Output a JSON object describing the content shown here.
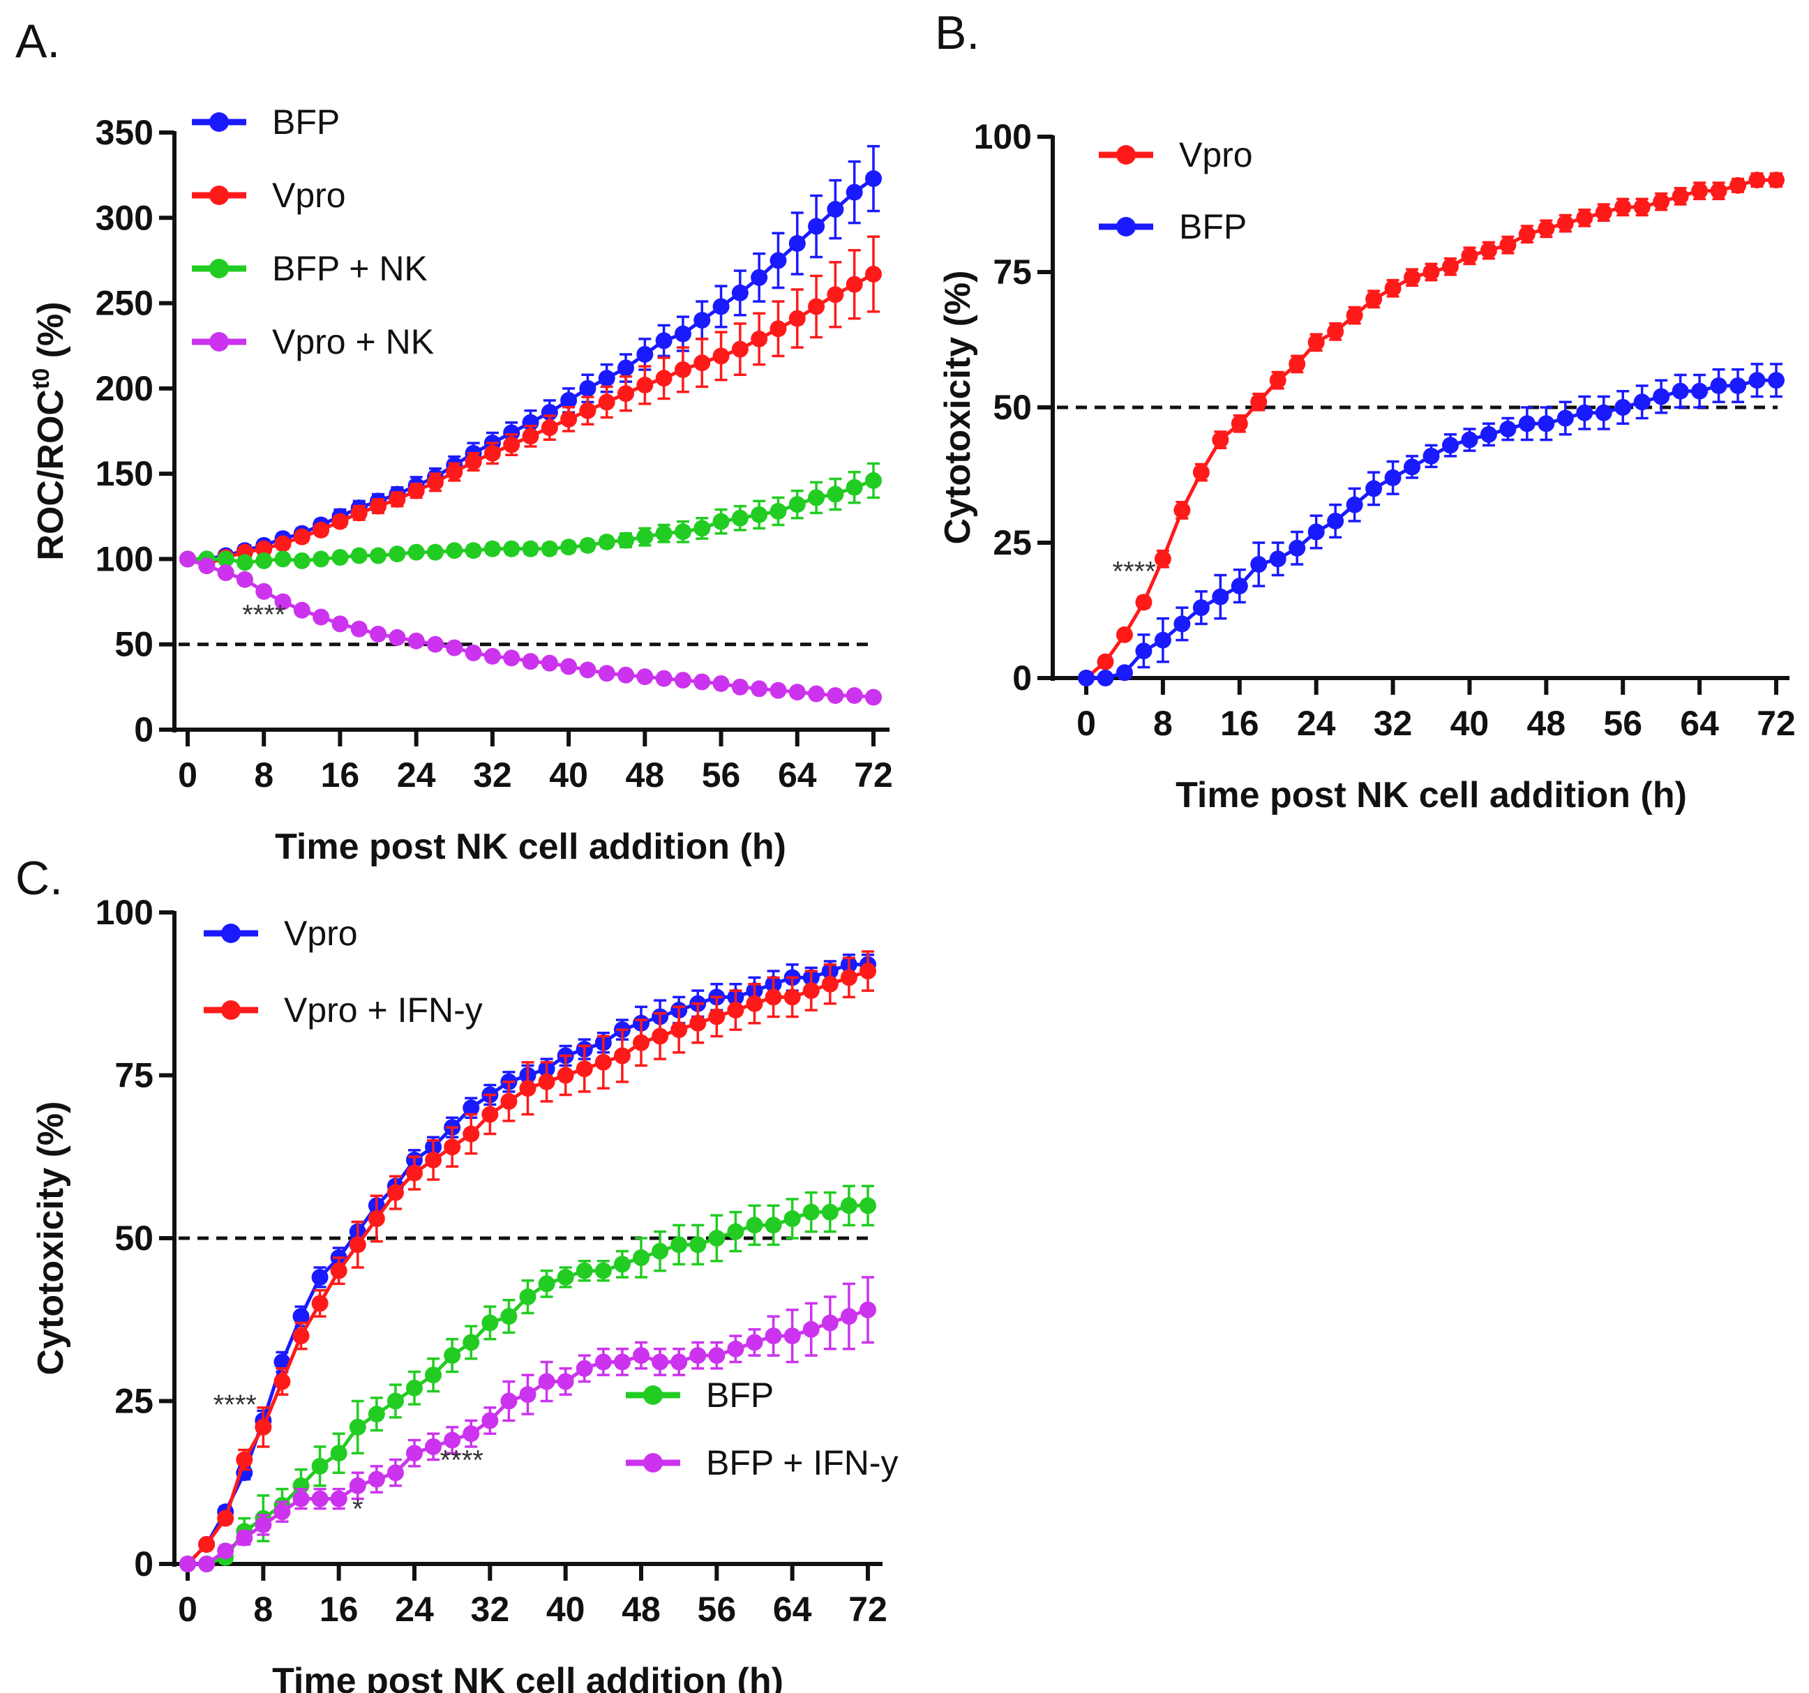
{
  "chart_data": [
    {
      "panel_label": "A.",
      "type": "line",
      "xlabel": "Time post NK cell addition (h)",
      "ylabel": "ROC/ROC",
      "ylabel_sup": "t0",
      "ylabel_suffix": " (%)",
      "xlim": [
        0,
        72
      ],
      "ylim": [
        0,
        350
      ],
      "xticks": [
        0,
        8,
        16,
        24,
        32,
        40,
        48,
        56,
        64,
        72
      ],
      "yticks": [
        0,
        50,
        100,
        150,
        200,
        250,
        300,
        350
      ],
      "reference_line": 50,
      "legend_placement": "top-left",
      "x_step": 2,
      "series": [
        {
          "name": "BFP",
          "color": "#1a1aff",
          "values": [
            100,
            100,
            102,
            105,
            108,
            112,
            115,
            120,
            125,
            130,
            134,
            138,
            143,
            148,
            155,
            162,
            168,
            174,
            180,
            186,
            193,
            200,
            206,
            212,
            220,
            228,
            232,
            240,
            248,
            256,
            265,
            275,
            285,
            295,
            305,
            315,
            323
          ],
          "err": [
            2,
            2,
            2,
            3,
            3,
            3,
            3,
            3,
            4,
            4,
            4,
            4,
            5,
            5,
            5,
            6,
            6,
            6,
            7,
            7,
            7,
            8,
            8,
            8,
            9,
            9,
            10,
            11,
            12,
            13,
            14,
            16,
            18,
            18,
            17,
            18,
            19
          ]
        },
        {
          "name": "Vpro",
          "color": "#ff1a1a",
          "values": [
            100,
            97,
            101,
            104,
            106,
            109,
            113,
            117,
            122,
            127,
            131,
            135,
            140,
            145,
            151,
            157,
            162,
            167,
            172,
            177,
            182,
            187,
            192,
            197,
            202,
            206,
            211,
            215,
            219,
            223,
            229,
            235,
            241,
            248,
            255,
            261,
            267
          ],
          "err": [
            2,
            2,
            2,
            2,
            3,
            3,
            3,
            3,
            3,
            4,
            4,
            4,
            4,
            5,
            5,
            5,
            6,
            6,
            6,
            7,
            7,
            8,
            9,
            10,
            11,
            12,
            13,
            14,
            14,
            15,
            15,
            16,
            17,
            18,
            19,
            20,
            22
          ]
        },
        {
          "name": "BFP + NK",
          "color": "#22cc22",
          "values": [
            100,
            100,
            100,
            98,
            99,
            100,
            99,
            100,
            101,
            102,
            102,
            103,
            104,
            104,
            105,
            105,
            106,
            106,
            106,
            106,
            107,
            108,
            110,
            111,
            113,
            115,
            116,
            118,
            122,
            124,
            126,
            128,
            132,
            136,
            138,
            142,
            146
          ],
          "err": [
            1,
            1,
            1,
            2,
            2,
            2,
            2,
            2,
            2,
            2,
            2,
            2,
            2,
            2,
            2,
            3,
            3,
            3,
            3,
            3,
            3,
            3,
            3,
            4,
            5,
            5,
            6,
            6,
            7,
            7,
            8,
            8,
            8,
            9,
            9,
            9,
            10
          ]
        },
        {
          "name": "Vpro + NK",
          "color": "#cc33ee",
          "values": [
            100,
            96,
            92,
            88,
            81,
            75,
            70,
            66,
            62,
            59,
            56,
            54,
            52,
            50,
            48,
            45,
            43,
            42,
            40,
            39,
            37,
            35,
            33,
            32,
            31,
            30,
            29,
            28,
            27,
            25,
            24,
            23,
            22,
            21,
            20,
            20,
            19
          ],
          "err": [
            1,
            1,
            1,
            1,
            2,
            2,
            2,
            2,
            2,
            2,
            2,
            2,
            2,
            2,
            2,
            2,
            2,
            2,
            2,
            2,
            2,
            2,
            2,
            2,
            2,
            2,
            2,
            2,
            2,
            2,
            2,
            2,
            2,
            2,
            2,
            2,
            2
          ]
        }
      ],
      "annotations": [
        {
          "text": "****",
          "x": 8,
          "y": 62
        }
      ]
    },
    {
      "panel_label": "B.",
      "type": "line",
      "xlabel": "Time post NK cell addition (h)",
      "ylabel": "Cytotoxicity (%)",
      "xlim": [
        0,
        72
      ],
      "ylim": [
        0,
        100
      ],
      "xticks": [
        0,
        8,
        16,
        24,
        32,
        40,
        48,
        56,
        64,
        72
      ],
      "yticks": [
        0,
        25,
        50,
        75,
        100
      ],
      "reference_line": 50,
      "legend_placement": "top-left",
      "x_step": 2,
      "series": [
        {
          "name": "Vpro",
          "color": "#ff1a1a",
          "values": [
            0,
            3,
            8,
            14,
            22,
            31,
            38,
            44,
            47,
            51,
            55,
            58,
            62,
            64,
            67,
            70,
            72,
            74,
            75,
            76,
            78,
            79,
            80,
            82,
            83,
            84,
            85,
            86,
            87,
            87,
            88,
            89,
            90,
            90,
            91,
            92,
            92
          ],
          "err": [
            0.5,
            0.5,
            0.8,
            1,
            1.5,
            1.5,
            1.5,
            1.5,
            1.5,
            1.5,
            1.5,
            1.5,
            1.5,
            1.5,
            1.5,
            1.5,
            1.5,
            1.5,
            1.5,
            1.5,
            1.5,
            1.5,
            1.5,
            1.5,
            1.5,
            1.5,
            1.5,
            1.5,
            1.5,
            1.5,
            1.5,
            1.5,
            1.5,
            1.5,
            1.2,
            1.2,
            1.2
          ]
        },
        {
          "name": "BFP",
          "color": "#1a1aff",
          "values": [
            0,
            0,
            1,
            5,
            7,
            10,
            13,
            15,
            17,
            21,
            22,
            24,
            27,
            29,
            32,
            35,
            37,
            39,
            41,
            43,
            44,
            45,
            46,
            47,
            47,
            48,
            49,
            49,
            50,
            51,
            52,
            53,
            53,
            54,
            54,
            55,
            55
          ],
          "err": [
            0.5,
            0.5,
            0.8,
            3,
            4,
            3,
            3,
            4,
            3,
            4,
            3,
            3,
            3,
            3,
            3,
            3,
            3,
            2,
            2,
            2,
            2,
            2,
            2,
            3,
            3,
            3,
            3,
            3,
            3,
            3,
            3,
            3,
            3,
            3,
            3,
            3,
            3
          ]
        }
      ],
      "annotations": [
        {
          "text": "****",
          "x": 5,
          "y": 18
        }
      ]
    },
    {
      "panel_label": "C.",
      "type": "line",
      "xlabel": "Time post NK cell addition (h)",
      "ylabel": "Cytotoxicity (%)",
      "xlim": [
        0,
        72
      ],
      "ylim": [
        0,
        100
      ],
      "xticks": [
        0,
        8,
        16,
        24,
        32,
        40,
        48,
        56,
        64,
        72
      ],
      "yticks": [
        0,
        25,
        50,
        75,
        100
      ],
      "reference_line": 50,
      "legend_placement": "top-left and bottom-right",
      "x_step": 2,
      "series": [
        {
          "name": "Vpro",
          "color": "#1a1aff",
          "values": [
            0,
            3,
            8,
            14,
            22,
            31,
            38,
            44,
            47,
            51,
            55,
            58,
            62,
            64,
            67,
            70,
            72,
            74,
            75,
            76,
            78,
            79,
            80,
            82,
            83,
            84,
            85,
            86,
            87,
            87,
            88,
            89,
            90,
            90,
            91,
            92,
            92
          ],
          "err": [
            0.5,
            0.5,
            0.8,
            1,
            1.5,
            1.5,
            1.5,
            1.5,
            1.5,
            1.5,
            1.5,
            1.5,
            1.5,
            1.5,
            1.5,
            1.5,
            1.5,
            1.5,
            1.5,
            1.5,
            1.5,
            1.5,
            1.5,
            1.5,
            2.5,
            2.5,
            2,
            2,
            2,
            2,
            2,
            2,
            2,
            1.5,
            1.5,
            1.5,
            1.5
          ]
        },
        {
          "name": "Vpro + IFN-y",
          "color": "#ff1a1a",
          "values": [
            0,
            3,
            7,
            16,
            21,
            28,
            35,
            40,
            45,
            49,
            53,
            57,
            60,
            62,
            64,
            66,
            69,
            71,
            73,
            74,
            75,
            76,
            77,
            78,
            80,
            81,
            82,
            83,
            84,
            85,
            86,
            87,
            87,
            88,
            89,
            90,
            91
          ],
          "err": [
            0.5,
            0.5,
            0.8,
            1.5,
            3,
            2,
            2,
            2,
            2,
            3.5,
            3.5,
            2.5,
            2.5,
            3,
            3,
            3,
            3,
            3,
            4,
            3,
            3,
            3.5,
            4,
            4,
            3.5,
            3.5,
            3.5,
            3,
            3,
            3,
            3,
            3,
            3,
            3,
            3,
            3,
            3
          ]
        },
        {
          "name": "BFP",
          "color": "#22cc22",
          "values": [
            0,
            0,
            1,
            5,
            7,
            9,
            12,
            15,
            17,
            21,
            23,
            25,
            27,
            29,
            32,
            34,
            37,
            38,
            41,
            43,
            44,
            45,
            45,
            46,
            47,
            48,
            49,
            49,
            50,
            51,
            52,
            52,
            53,
            54,
            54,
            55,
            55
          ],
          "err": [
            0.5,
            0.5,
            0.8,
            2,
            3.5,
            2.5,
            2.5,
            3,
            3,
            4,
            2.5,
            2.5,
            2.5,
            2.5,
            2.5,
            2.5,
            2.5,
            2.5,
            2.5,
            2,
            1.5,
            1.5,
            1.5,
            2,
            3,
            3,
            3,
            3,
            3.5,
            3,
            3,
            3,
            3,
            3,
            3,
            3,
            3
          ]
        },
        {
          "name": "BFP + IFN-y",
          "color": "#cc33ee",
          "values": [
            0,
            0,
            2,
            4,
            6,
            8,
            10,
            10,
            10,
            12,
            13,
            14,
            17,
            18,
            19,
            20,
            22,
            25,
            26,
            28,
            28,
            30,
            31,
            31,
            32,
            31,
            31,
            32,
            32,
            33,
            34,
            35,
            35,
            36,
            37,
            38,
            39
          ],
          "err": [
            0.5,
            0.5,
            0.8,
            1,
            1.5,
            1.5,
            1.5,
            1.5,
            1.5,
            2,
            2,
            2,
            2,
            2,
            2,
            2,
            2,
            3,
            3,
            3,
            2,
            2,
            2,
            2,
            2,
            2,
            2,
            2,
            2,
            2,
            2,
            3,
            4,
            4,
            4,
            5,
            5
          ]
        }
      ],
      "annotations": [
        {
          "text": "****",
          "x": 5,
          "y": 23
        },
        {
          "text": "****",
          "x": 29,
          "y": 14.5
        },
        {
          "text": "*",
          "x": 18,
          "y": 7
        }
      ]
    }
  ]
}
